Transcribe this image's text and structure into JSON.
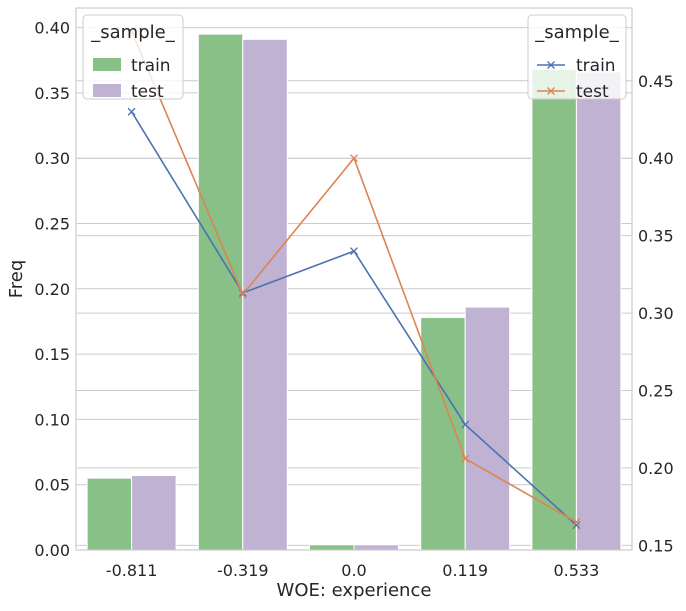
{
  "chart_data": {
    "type": "bar",
    "xlabel": "WOE: experience",
    "ylabel": "Freq",
    "categories": [
      "-0.811",
      "-0.319",
      "0.0",
      "0.119",
      "0.533"
    ],
    "bar_series": [
      {
        "name": "train",
        "color": "#88c087",
        "values": [
          0.055,
          0.395,
          0.004,
          0.178,
          0.368
        ]
      },
      {
        "name": "test",
        "color": "#c0b2d2",
        "values": [
          0.057,
          0.391,
          0.004,
          0.186,
          0.366
        ]
      }
    ],
    "line_series": [
      {
        "name": "train",
        "color": "#4c72b0",
        "marker": "x",
        "values": [
          0.43,
          0.313,
          0.34,
          0.228,
          0.163
        ]
      },
      {
        "name": "test",
        "color": "#dd8452",
        "marker": "x",
        "values": [
          0.482,
          0.312,
          0.4,
          0.206,
          0.165
        ]
      }
    ],
    "ylim": [
      0,
      0.415
    ],
    "y2lim": [
      0.147,
      0.497
    ],
    "yticks": [
      "0.00",
      "0.05",
      "0.10",
      "0.15",
      "0.20",
      "0.25",
      "0.30",
      "0.35",
      "0.40"
    ],
    "y2ticks": [
      "0.15",
      "0.20",
      "0.25",
      "0.30",
      "0.35",
      "0.40",
      "0.45"
    ],
    "grid": true,
    "legend_left": {
      "title": "_sample_",
      "placement": "top-left",
      "entries": [
        "train",
        "test"
      ]
    },
    "legend_right": {
      "title": "_sample_",
      "placement": "top-right",
      "entries": [
        "train",
        "test"
      ]
    }
  }
}
